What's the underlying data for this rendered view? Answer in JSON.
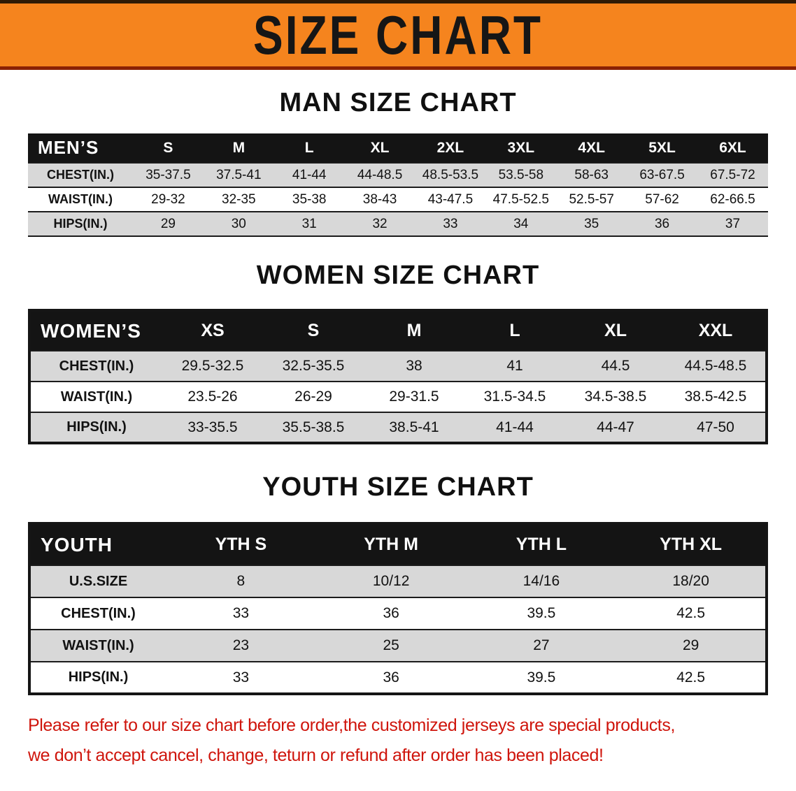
{
  "banner": {
    "title": "SIZE CHART"
  },
  "colors": {
    "banner_bg": "#f5841e",
    "banner_top_border": "#2f1a05",
    "banner_bottom_border": "#8a2103",
    "table_header_bg": "#141414",
    "table_header_text": "#ffffff",
    "row_shaded": "#d8d8d8",
    "row_plain": "#ffffff",
    "notice_red": "#cf150c"
  },
  "sections": {
    "men": {
      "heading": "MAN SIZE CHART",
      "table": {
        "corner": "MEN’S",
        "columns": [
          "S",
          "M",
          "L",
          "XL",
          "2XL",
          "3XL",
          "4XL",
          "5XL",
          "6XL"
        ],
        "rows": [
          {
            "label": "CHEST(IN.)",
            "shaded": true,
            "values": [
              "35-37.5",
              "37.5-41",
              "41-44",
              "44-48.5",
              "48.5-53.5",
              "53.5-58",
              "58-63",
              "63-67.5",
              "67.5-72"
            ]
          },
          {
            "label": "WAIST(IN.)",
            "shaded": false,
            "values": [
              "29-32",
              "32-35",
              "35-38",
              "38-43",
              "43-47.5",
              "47.5-52.5",
              "52.5-57",
              "57-62",
              "62-66.5"
            ]
          },
          {
            "label": "HIPS(IN.)",
            "shaded": true,
            "values": [
              "29",
              "30",
              "31",
              "32",
              "33",
              "34",
              "35",
              "36",
              "37"
            ]
          }
        ]
      }
    },
    "women": {
      "heading": "WOMEN SIZE CHART",
      "table": {
        "corner": "WOMEN’S",
        "columns": [
          "XS",
          "S",
          "M",
          "L",
          "XL",
          "XXL"
        ],
        "rows": [
          {
            "label": "CHEST(IN.)",
            "shaded": true,
            "values": [
              "29.5-32.5",
              "32.5-35.5",
              "38",
              "41",
              "44.5",
              "44.5-48.5"
            ]
          },
          {
            "label": "WAIST(IN.)",
            "shaded": false,
            "values": [
              "23.5-26",
              "26-29",
              "29-31.5",
              "31.5-34.5",
              "34.5-38.5",
              "38.5-42.5"
            ]
          },
          {
            "label": "HIPS(IN.)",
            "shaded": true,
            "values": [
              "33-35.5",
              "35.5-38.5",
              "38.5-41",
              "41-44",
              "44-47",
              "47-50"
            ]
          }
        ]
      }
    },
    "youth": {
      "heading": "YOUTH SIZE CHART",
      "table": {
        "corner": "YOUTH",
        "columns": [
          "YTH S",
          "YTH M",
          "YTH L",
          "YTH XL"
        ],
        "rows": [
          {
            "label": "U.S.SIZE",
            "shaded": true,
            "values": [
              "8",
              "10/12",
              "14/16",
              "18/20"
            ]
          },
          {
            "label": "CHEST(IN.)",
            "shaded": false,
            "values": [
              "33",
              "36",
              "39.5",
              "42.5"
            ]
          },
          {
            "label": "WAIST(IN.)",
            "shaded": true,
            "values": [
              "23",
              "25",
              "27",
              "29"
            ]
          },
          {
            "label": "HIPS(IN.)",
            "shaded": false,
            "values": [
              "33",
              "36",
              "39.5",
              "42.5"
            ]
          }
        ]
      }
    }
  },
  "notice": {
    "line1": "Please refer to our size chart before order,the customized jerseys are special products,",
    "line2": "we don’t accept cancel, change, teturn or refund after order has been placed!"
  }
}
